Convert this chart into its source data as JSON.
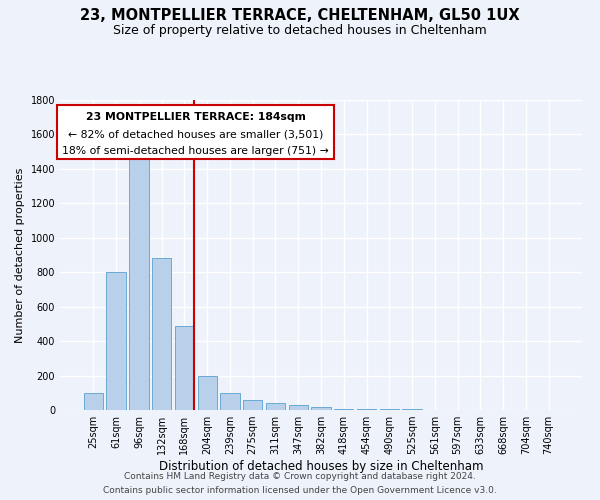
{
  "title_line1": "23, MONTPELLIER TERRACE, CHELTENHAM, GL50 1UX",
  "title_line2": "Size of property relative to detached houses in Cheltenham",
  "xlabel": "Distribution of detached houses by size in Cheltenham",
  "ylabel": "Number of detached properties",
  "categories": [
    "25sqm",
    "61sqm",
    "96sqm",
    "132sqm",
    "168sqm",
    "204sqm",
    "239sqm",
    "275sqm",
    "311sqm",
    "347sqm",
    "382sqm",
    "418sqm",
    "454sqm",
    "490sqm",
    "525sqm",
    "561sqm",
    "597sqm",
    "633sqm",
    "668sqm",
    "704sqm",
    "740sqm"
  ],
  "values": [
    100,
    800,
    1500,
    880,
    490,
    200,
    100,
    60,
    40,
    30,
    20,
    8,
    6,
    4,
    3,
    2,
    2,
    2,
    1,
    1,
    1
  ],
  "bar_color": "#b8d0ea",
  "bar_edge_color": "#6aaad4",
  "vline_color": "#cc0000",
  "vline_x_index": 4,
  "annotation_text_line1": "23 MONTPELLIER TERRACE: 184sqm",
  "annotation_text_line2": "← 82% of detached houses are smaller (3,501)",
  "annotation_text_line3": "18% of semi-detached houses are larger (751) →",
  "annotation_box_facecolor": "#ffffff",
  "annotation_box_edgecolor": "#cc0000",
  "ylim": [
    0,
    1800
  ],
  "yticks": [
    0,
    200,
    400,
    600,
    800,
    1000,
    1200,
    1400,
    1600,
    1800
  ],
  "background_color": "#eef2fa",
  "grid_color": "#ffffff",
  "title1_fontsize": 10.5,
  "title2_fontsize": 9.0,
  "xlabel_fontsize": 8.5,
  "ylabel_fontsize": 8.0,
  "tick_fontsize": 7.0,
  "footer_fontsize": 6.5,
  "annotation_fontsize": 7.8,
  "footer_line1": "Contains HM Land Registry data © Crown copyright and database right 2024.",
  "footer_line2": "Contains public sector information licensed under the Open Government Licence v3.0."
}
